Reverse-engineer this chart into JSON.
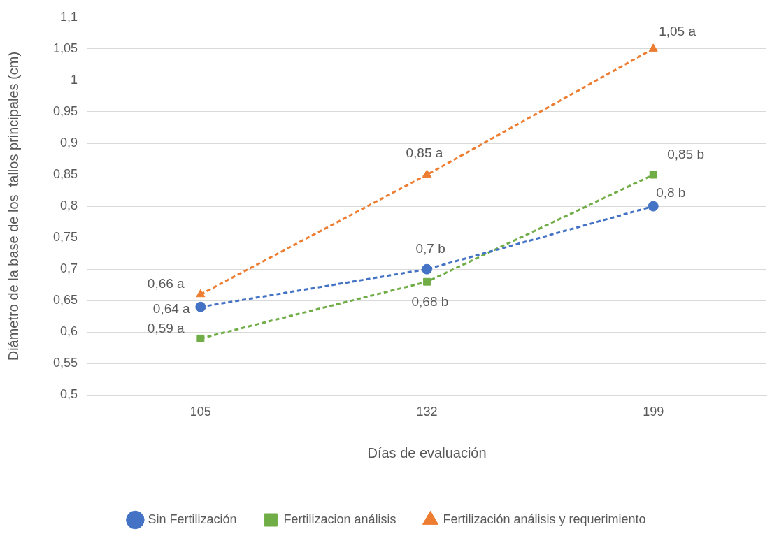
{
  "chart_data": {
    "type": "line",
    "xlabel": "Días de evaluación",
    "ylabel": "Diámetro de la base de los  tallos principales (cm)",
    "categories": [
      "105",
      "132",
      "199"
    ],
    "series": [
      {
        "name": "Sin Fertilización",
        "color": "#4472c4",
        "marker": "circle",
        "values": [
          0.64,
          0.7,
          0.8
        ],
        "value_labels": [
          "0,64 a",
          "0,7 b",
          "0,8 b"
        ]
      },
      {
        "name": "Fertilizacion análisis",
        "color": "#70ad47",
        "marker": "square",
        "values": [
          0.59,
          0.68,
          0.85
        ],
        "value_labels": [
          "0,59 a",
          "0,68 b",
          "0,85 b"
        ]
      },
      {
        "name": "Fertilización análisis y requerimiento",
        "color": "#ed7d31",
        "marker": "triangle",
        "values": [
          0.66,
          0.85,
          1.05
        ],
        "value_labels": [
          "0,66 a",
          "0,85 a",
          "1,05 a"
        ]
      }
    ],
    "ylim": [
      0.5,
      1.1
    ],
    "yticks": [
      {
        "value": 0.5,
        "label": "0,5"
      },
      {
        "value": 0.55,
        "label": "0,55"
      },
      {
        "value": 0.6,
        "label": "0,6"
      },
      {
        "value": 0.65,
        "label": "0,65"
      },
      {
        "value": 0.7,
        "label": "0,7"
      },
      {
        "value": 0.75,
        "label": "0,75"
      },
      {
        "value": 0.8,
        "label": "0,8"
      },
      {
        "value": 0.85,
        "label": "0,85"
      },
      {
        "value": 0.9,
        "label": "0,9"
      },
      {
        "value": 0.95,
        "label": "0,95"
      },
      {
        "value": 1,
        "label": "1"
      },
      {
        "value": 1.05,
        "label": "1,05"
      },
      {
        "value": 1.1,
        "label": "1,1"
      }
    ],
    "grid": "y",
    "legend": "bottom",
    "line_style": "dashed"
  }
}
